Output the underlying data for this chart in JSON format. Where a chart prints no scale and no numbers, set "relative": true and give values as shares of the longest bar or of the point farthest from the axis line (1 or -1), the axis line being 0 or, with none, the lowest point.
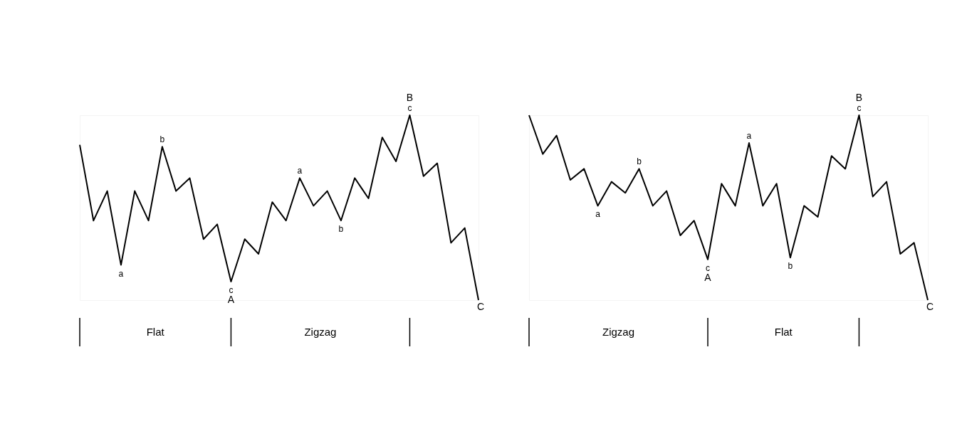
{
  "chart_data": [
    {
      "type": "line",
      "relative": true,
      "categories": [
        null,
        null,
        null,
        null,
        null,
        null,
        null,
        null,
        null,
        null,
        null,
        null,
        null,
        null,
        null,
        null,
        null,
        null,
        null,
        null,
        null,
        null,
        null,
        null,
        null,
        null,
        null,
        null,
        null,
        null
      ],
      "series": [
        {
          "color": "#000000",
          "values": [
            0.84,
            0.43,
            0.59,
            0.19,
            0.59,
            0.43,
            0.83,
            0.59,
            0.66,
            0.33,
            0.41,
            0.1,
            0.33,
            0.25,
            0.53,
            0.43,
            0.66,
            0.51,
            0.59,
            0.43,
            0.66,
            0.55,
            0.88,
            0.75,
            1.0,
            0.67,
            0.74,
            0.31,
            0.39,
            0
          ]
        }
      ],
      "annotations": [
        {
          "text": "a",
          "y": 0.19
        },
        {
          "text": "b",
          "y": 0.83
        },
        {
          "text": "c",
          "y": 0.1
        },
        {
          "text": "A",
          "y": 0.1
        },
        {
          "text": "a",
          "y": 0.66
        },
        {
          "text": "b",
          "y": 0.43
        },
        {
          "text": "c",
          "y": 1.0
        },
        {
          "text": "B",
          "y": 1.0
        },
        {
          "text": "C",
          "y": 0
        },
        "Flat",
        "Zigzag"
      ]
    },
    {
      "type": "line",
      "relative": true,
      "categories": [
        null,
        null,
        null,
        null,
        null,
        null,
        null,
        null,
        null,
        null,
        null,
        null,
        null,
        null,
        null,
        null,
        null,
        null,
        null,
        null,
        null,
        null,
        null,
        null,
        null,
        null,
        null,
        null,
        null,
        null
      ],
      "series": [
        {
          "color": "#000000",
          "values": [
            1.0,
            0.79,
            0.89,
            0.65,
            0.71,
            0.51,
            0.64,
            0.58,
            0.71,
            0.51,
            0.59,
            0.35,
            0.43,
            0.22,
            0.63,
            0.51,
            0.85,
            0.51,
            0.63,
            0.23,
            0.51,
            0.45,
            0.78,
            0.71,
            1.0,
            0.56,
            0.64,
            0.25,
            0.31,
            0
          ]
        }
      ],
      "annotations": [
        {
          "text": "a",
          "y": 0.51
        },
        {
          "text": "b",
          "y": 0.71
        },
        {
          "text": "c",
          "y": 0.22
        },
        {
          "text": "A",
          "y": 0.22
        },
        {
          "text": "a",
          "y": 0.85
        },
        {
          "text": "b",
          "y": 0.23
        },
        {
          "text": "c",
          "y": 1.0
        },
        {
          "text": "B",
          "y": 1.0
        },
        {
          "text": "C",
          "y": 0
        },
        "Zigzag",
        "Flat"
      ]
    }
  ]
}
